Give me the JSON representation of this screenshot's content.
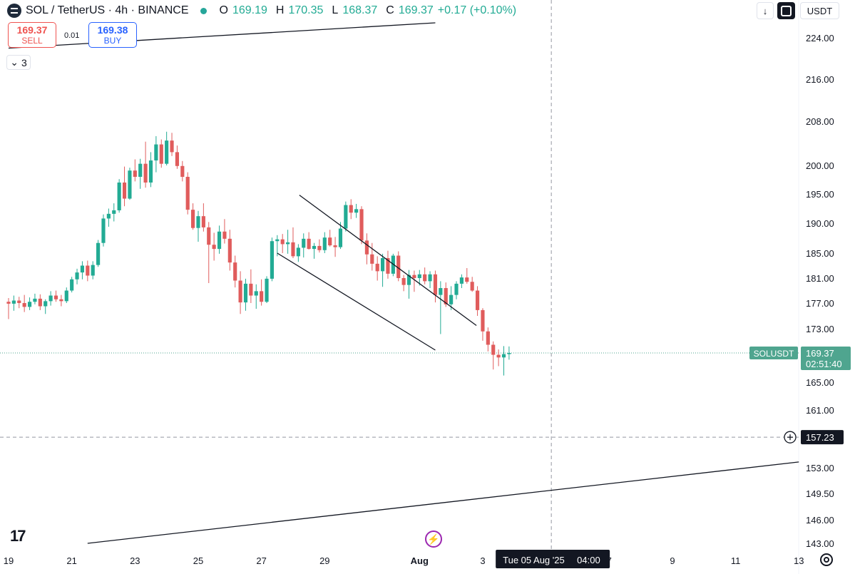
{
  "header": {
    "symbol": "SOL / TetherUS · 4h · BINANCE",
    "open_label": "O",
    "open": "169.19",
    "high_label": "H",
    "high": "170.35",
    "low_label": "L",
    "low": "168.37",
    "close_label": "C",
    "close": "169.37",
    "change": "+0.17 (+0.10%)"
  },
  "trade": {
    "sell_price": "169.37",
    "sell_label": "SELL",
    "spread": "0.01",
    "buy_price": "169.38",
    "buy_label": "BUY"
  },
  "indicators": {
    "collapse_icon": "chevron-down-icon",
    "count": "3"
  },
  "toolbar": {
    "download_icon": "arrow-down-icon",
    "fullscreen_icon": "expand-icon",
    "currency": "USDT"
  },
  "branding": {
    "logo": "TV",
    "logo_icon": "tradingview-logo-icon",
    "flash_icon": "lightning-icon",
    "settings_icon": "gear-icon"
  },
  "chart_data": {
    "type": "candlestick",
    "price_ticks": [
      224,
      216,
      208,
      200,
      195,
      190,
      185,
      181,
      177,
      173,
      165,
      161,
      153,
      149.5,
      146,
      143
    ],
    "date_ticks": [
      {
        "day": 19,
        "label": "19"
      },
      {
        "day": 21,
        "label": "21"
      },
      {
        "day": 23,
        "label": "23"
      },
      {
        "day": 25,
        "label": "25"
      },
      {
        "day": 27,
        "label": "27"
      },
      {
        "day": 29,
        "label": "29"
      },
      {
        "day": 32,
        "label": "Aug"
      },
      {
        "day": 34,
        "label": "3"
      },
      {
        "day": 38,
        "label": "7"
      },
      {
        "day": 40,
        "label": "9"
      },
      {
        "day": 42,
        "label": "11"
      },
      {
        "day": 44,
        "label": "13"
      }
    ],
    "candle_interval": "4h",
    "first_candle_day": 19.0,
    "candles": [
      [
        177.2,
        177.8,
        174.5,
        176.9
      ],
      [
        176.9,
        178.2,
        175.8,
        177.4
      ],
      [
        177.4,
        178.0,
        176.2,
        177.0
      ],
      [
        177.0,
        178.3,
        175.6,
        176.4
      ],
      [
        176.4,
        177.9,
        175.9,
        177.2
      ],
      [
        177.2,
        178.5,
        176.8,
        177.7
      ],
      [
        177.7,
        178.4,
        175.9,
        176.5
      ],
      [
        176.5,
        177.6,
        175.3,
        177.3
      ],
      [
        177.3,
        178.9,
        176.6,
        178.2
      ],
      [
        178.2,
        179.0,
        177.2,
        177.6
      ],
      [
        177.6,
        178.3,
        176.5,
        177.3
      ],
      [
        177.3,
        179.5,
        177.0,
        179.0
      ],
      [
        179.0,
        181.2,
        178.7,
        180.8
      ],
      [
        180.8,
        182.5,
        180.0,
        181.9
      ],
      [
        181.9,
        183.7,
        180.8,
        183.0
      ],
      [
        183.0,
        183.8,
        180.5,
        181.4
      ],
      [
        181.4,
        183.7,
        180.8,
        183.1
      ],
      [
        183.1,
        187.2,
        182.8,
        186.7
      ],
      [
        186.7,
        191.5,
        186.1,
        190.8
      ],
      [
        190.8,
        192.5,
        189.4,
        191.6
      ],
      [
        191.6,
        193.4,
        190.3,
        192.2
      ],
      [
        192.2,
        197.6,
        191.8,
        197.0
      ],
      [
        197.0,
        199.8,
        192.9,
        194.2
      ],
      [
        194.2,
        199.6,
        194.0,
        199.1
      ],
      [
        199.1,
        201.1,
        197.2,
        198.0
      ],
      [
        198.0,
        201.2,
        195.9,
        200.3
      ],
      [
        200.3,
        204.3,
        196.1,
        197.0
      ],
      [
        197.0,
        202.4,
        196.2,
        200.9
      ],
      [
        200.9,
        205.3,
        198.8,
        203.8
      ],
      [
        203.8,
        204.7,
        199.6,
        200.3
      ],
      [
        200.3,
        206.1,
        200.0,
        204.5
      ],
      [
        204.5,
        205.9,
        201.7,
        202.4
      ],
      [
        202.4,
        203.6,
        199.4,
        199.9
      ],
      [
        199.9,
        200.8,
        197.2,
        198.0
      ],
      [
        198.0,
        198.8,
        191.5,
        192.3
      ],
      [
        192.3,
        193.4,
        188.9,
        189.2
      ],
      [
        189.2,
        192.1,
        186.9,
        191.2
      ],
      [
        191.2,
        193.4,
        188.6,
        189.3
      ],
      [
        189.3,
        190.2,
        180.2,
        186.4
      ],
      [
        186.4,
        188.4,
        183.8,
        185.7
      ],
      [
        185.7,
        189.6,
        184.9,
        188.6
      ],
      [
        188.6,
        190.7,
        186.6,
        187.4
      ],
      [
        187.4,
        188.9,
        182.2,
        183.5
      ],
      [
        183.5,
        184.6,
        179.5,
        180.6
      ],
      [
        180.6,
        182.1,
        175.3,
        177.1
      ],
      [
        177.1,
        180.9,
        175.8,
        180.1
      ],
      [
        180.1,
        182.4,
        177.0,
        178.2
      ],
      [
        178.2,
        180.0,
        176.1,
        178.9
      ],
      [
        178.9,
        180.8,
        176.6,
        177.2
      ],
      [
        177.2,
        181.3,
        177.0,
        180.9
      ],
      [
        180.9,
        187.6,
        180.5,
        187.0
      ],
      [
        187.0,
        188.0,
        184.5,
        187.3
      ],
      [
        187.3,
        188.2,
        185.0,
        186.5
      ],
      [
        186.5,
        188.9,
        184.9,
        186.8
      ],
      [
        186.8,
        189.3,
        184.2,
        184.5
      ],
      [
        184.5,
        186.5,
        183.6,
        185.9
      ],
      [
        185.9,
        188.3,
        184.3,
        187.4
      ],
      [
        187.4,
        188.5,
        185.6,
        185.7
      ],
      [
        185.7,
        186.7,
        184.1,
        186.2
      ],
      [
        186.2,
        187.3,
        185.1,
        185.5
      ],
      [
        185.5,
        188.5,
        185.0,
        187.6
      ],
      [
        187.6,
        188.9,
        186.1,
        186.3
      ],
      [
        186.3,
        187.7,
        184.4,
        186.0
      ],
      [
        186.0,
        190.2,
        185.7,
        189.1
      ],
      [
        189.1,
        193.7,
        188.6,
        193.1
      ],
      [
        193.1,
        194.1,
        190.7,
        191.8
      ],
      [
        191.8,
        193.3,
        190.9,
        192.4
      ],
      [
        192.4,
        192.9,
        186.5,
        187.1
      ],
      [
        187.1,
        188.3,
        183.2,
        184.8
      ],
      [
        184.8,
        186.7,
        182.2,
        183.3
      ],
      [
        183.3,
        184.5,
        180.6,
        182.1
      ],
      [
        182.1,
        184.9,
        179.6,
        184.2
      ],
      [
        184.2,
        185.4,
        180.9,
        181.7
      ],
      [
        181.7,
        184.9,
        181.3,
        184.6
      ],
      [
        184.6,
        185.3,
        180.5,
        181.0
      ],
      [
        181.0,
        181.5,
        178.9,
        179.9
      ],
      [
        179.9,
        182.3,
        177.7,
        181.5
      ],
      [
        181.5,
        182.2,
        178.8,
        181.0
      ],
      [
        181.0,
        182.3,
        179.8,
        181.6
      ],
      [
        181.6,
        182.7,
        180.0,
        180.5
      ],
      [
        180.5,
        182.1,
        179.4,
        181.6
      ],
      [
        181.6,
        182.2,
        177.1,
        178.3
      ],
      [
        178.3,
        180.5,
        172.2,
        179.4
      ],
      [
        179.4,
        180.3,
        176.4,
        176.8
      ],
      [
        176.8,
        179.7,
        175.9,
        178.3
      ],
      [
        178.3,
        180.5,
        177.6,
        180.1
      ],
      [
        180.1,
        181.6,
        179.4,
        181.1
      ],
      [
        181.1,
        182.6,
        180.1,
        180.4
      ],
      [
        180.4,
        181.2,
        178.8,
        179.0
      ],
      [
        179.0,
        179.7,
        175.0,
        175.9
      ],
      [
        175.9,
        176.2,
        171.2,
        172.6
      ],
      [
        172.6,
        173.2,
        169.6,
        170.6
      ],
      [
        170.6,
        171.1,
        166.9,
        169.1
      ],
      [
        169.1,
        169.9,
        167.4,
        168.7
      ],
      [
        168.7,
        170.4,
        166.0,
        169.2
      ],
      [
        169.2,
        170.35,
        168.37,
        169.37
      ]
    ],
    "trendlines": [
      {
        "from": [
          19.0,
          222.0
        ],
        "to": [
          32.5,
          227.0
        ]
      },
      {
        "from": [
          28.2,
          194.8
        ],
        "to": [
          33.8,
          173.5
        ]
      },
      {
        "from": [
          27.5,
          185.0
        ],
        "to": [
          32.5,
          169.8
        ]
      },
      {
        "from": [
          21.5,
          143.0
        ],
        "to": [
          44.0,
          153.8
        ]
      }
    ],
    "last_price": {
      "symbol": "SOLUSDT",
      "price": "169.37",
      "countdown": "02:51:40",
      "value": 169.37
    },
    "crosshair": {
      "price": "157.23",
      "value": 157.23,
      "date_label": "Tue 05 Aug '25",
      "time_label": "04:00",
      "day": 36.17
    },
    "colors": {
      "up": "#22ab94",
      "down": "#e05c5c",
      "line": "#131722",
      "price_tag": "#4fa58f",
      "crosshair_tag": "#131722"
    }
  }
}
